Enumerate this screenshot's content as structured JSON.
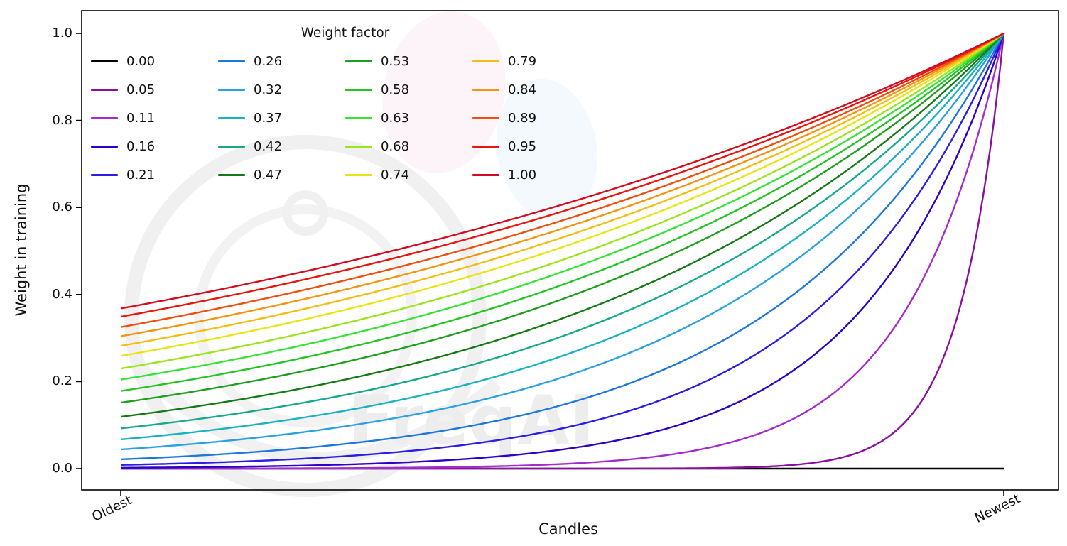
{
  "figure": {
    "watermark_text": "FreqAI"
  },
  "chart_data": {
    "type": "line",
    "title": "",
    "legend_title": "Weight factor",
    "legend_position": "upper left",
    "legend_columns": 4,
    "xlabel": "Candles",
    "ylabel": "Weight in training",
    "x_tick_labels": [
      "Oldest",
      "Newest"
    ],
    "y_ticks": [
      0.0,
      0.2,
      0.4,
      0.6,
      0.8,
      1.0
    ],
    "y_tick_labels": [
      "0.0",
      "0.2",
      "0.4",
      "0.6",
      "0.8",
      "1.0"
    ],
    "ylim": [
      0,
      1
    ],
    "grid": false,
    "formula": "weight(x) = exp(-(1 - x) / factor), x normalized 0 (oldest) to 1 (newest); factor 0.00 gives constant 0",
    "series": [
      {
        "name": "0.00",
        "factor": 0.0,
        "color": "#000000",
        "y_oldest": 0.0,
        "y_newest": 0.0
      },
      {
        "name": "0.05",
        "factor": 0.05,
        "color": "#8a0f9e",
        "y_oldest": 0.0,
        "y_newest": 1.0
      },
      {
        "name": "0.11",
        "factor": 0.11,
        "color": "#a42ccd",
        "y_oldest": 0.0001,
        "y_newest": 1.0
      },
      {
        "name": "0.16",
        "factor": 0.16,
        "color": "#2d00c8",
        "y_oldest": 0.0019,
        "y_newest": 1.0
      },
      {
        "name": "0.21",
        "factor": 0.21,
        "color": "#2a1de6",
        "y_oldest": 0.0086,
        "y_newest": 1.0
      },
      {
        "name": "0.26",
        "factor": 0.26,
        "color": "#1e78dc",
        "y_oldest": 0.0214,
        "y_newest": 1.0
      },
      {
        "name": "0.32",
        "factor": 0.32,
        "color": "#2aa1e0",
        "y_oldest": 0.0439,
        "y_newest": 1.0
      },
      {
        "name": "0.37",
        "factor": 0.37,
        "color": "#18b3c3",
        "y_oldest": 0.067,
        "y_newest": 1.0
      },
      {
        "name": "0.42",
        "factor": 0.42,
        "color": "#17a98a",
        "y_oldest": 0.0924,
        "y_newest": 1.0
      },
      {
        "name": "0.47",
        "factor": 0.47,
        "color": "#157a15",
        "y_oldest": 0.1191,
        "y_newest": 1.0
      },
      {
        "name": "0.53",
        "factor": 0.53,
        "color": "#1ea01e",
        "y_oldest": 0.1516,
        "y_newest": 1.0
      },
      {
        "name": "0.58",
        "factor": 0.58,
        "color": "#25c425",
        "y_oldest": 0.1783,
        "y_newest": 1.0
      },
      {
        "name": "0.63",
        "factor": 0.63,
        "color": "#35e435",
        "y_oldest": 0.2044,
        "y_newest": 1.0
      },
      {
        "name": "0.68",
        "factor": 0.68,
        "color": "#9ce41c",
        "y_oldest": 0.2298,
        "y_newest": 1.0
      },
      {
        "name": "0.74",
        "factor": 0.74,
        "color": "#e9e414",
        "y_oldest": 0.2589,
        "y_newest": 1.0
      },
      {
        "name": "0.79",
        "factor": 0.79,
        "color": "#f5bd12",
        "y_oldest": 0.282,
        "y_newest": 1.0
      },
      {
        "name": "0.84",
        "factor": 0.84,
        "color": "#f69310",
        "y_oldest": 0.304,
        "y_newest": 1.0
      },
      {
        "name": "0.89",
        "factor": 0.89,
        "color": "#ef4e0d",
        "y_oldest": 0.3251,
        "y_newest": 1.0
      },
      {
        "name": "0.95",
        "factor": 0.95,
        "color": "#e8150d",
        "y_oldest": 0.349,
        "y_newest": 1.0
      },
      {
        "name": "1.00",
        "factor": 1.0,
        "color": "#d30b20",
        "y_oldest": 0.3679,
        "y_newest": 1.0
      }
    ]
  }
}
